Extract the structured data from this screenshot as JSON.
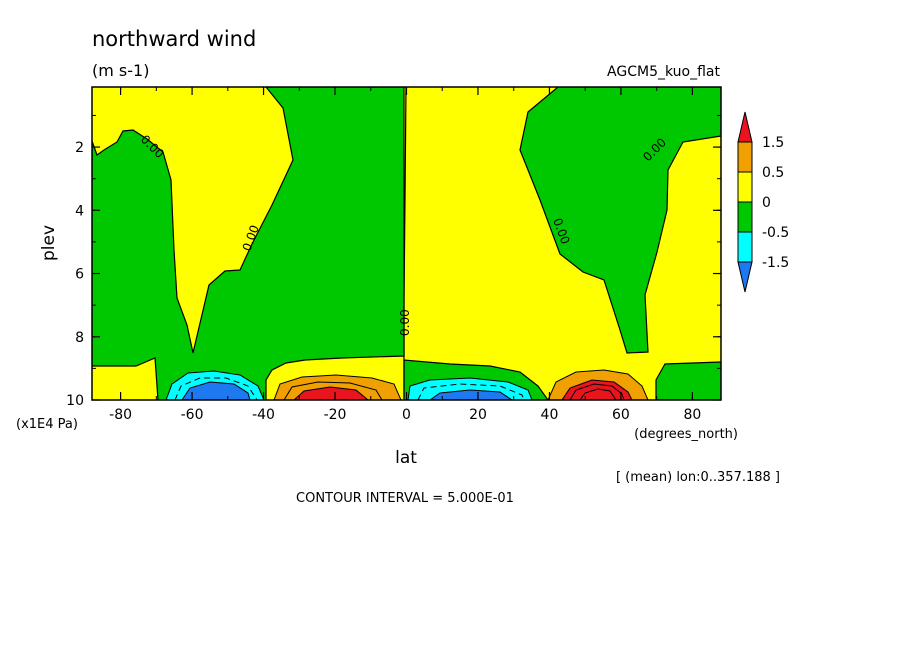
{
  "chart_data": {
    "type": "heatmap",
    "title": "northward wind",
    "units": "(m s-1)",
    "dataset_label": "AGCM5_kuo_flat",
    "xlabel": "lat",
    "xunits": "(degrees_north)",
    "ylabel": "plev",
    "yunits": "(x1E4 Pa)",
    "xlim": [
      -88,
      88
    ],
    "ylim": [
      0.1,
      10
    ],
    "y_inverted": true,
    "xticks": [
      -80,
      -60,
      -40,
      -20,
      0,
      20,
      40,
      60,
      80
    ],
    "yticks": [
      2,
      4,
      6,
      8,
      10
    ],
    "colorbar": {
      "levels": [
        "1.5",
        "0.5",
        "0",
        "-0.5",
        "-1.5"
      ],
      "colors": {
        "gt_1.5": "#e8141e",
        "1_to_1.5": "#f0a000",
        "0.5_to_1": "#f0a000",
        "0_to_0.5": "#ffff00",
        "-0.5_to_0": "#00c800",
        "-1_to_-0.5": "#00ffff",
        "-1.5_to_-1": "#00ffff",
        "lt_-1.5": "#1e78f0"
      }
    },
    "contour_labels": [
      {
        "text": "0.00",
        "x": -74,
        "y": 1.9
      },
      {
        "text": "0.00",
        "x": -47,
        "y": 4.9
      },
      {
        "text": "0.00",
        "x": -0.5,
        "y": 8.0
      },
      {
        "text": "0.00",
        "x": 44,
        "y": 4.9
      },
      {
        "text": "0.00",
        "x": 73,
        "y": 1.9
      }
    ],
    "extrema": [
      {
        "lat": -55,
        "plev": 9.8,
        "value": -1.6
      },
      {
        "lat": -22,
        "plev": 9.8,
        "value": 1.6
      },
      {
        "lat": 22,
        "plev": 9.8,
        "value": -1.2
      },
      {
        "lat": 53,
        "plev": 9.8,
        "value": 1.7
      }
    ],
    "region_note": "[ (mean) lon:0..357.188 ]",
    "contour_interval_text": "CONTOUR INTERVAL = 5.000E-01"
  }
}
